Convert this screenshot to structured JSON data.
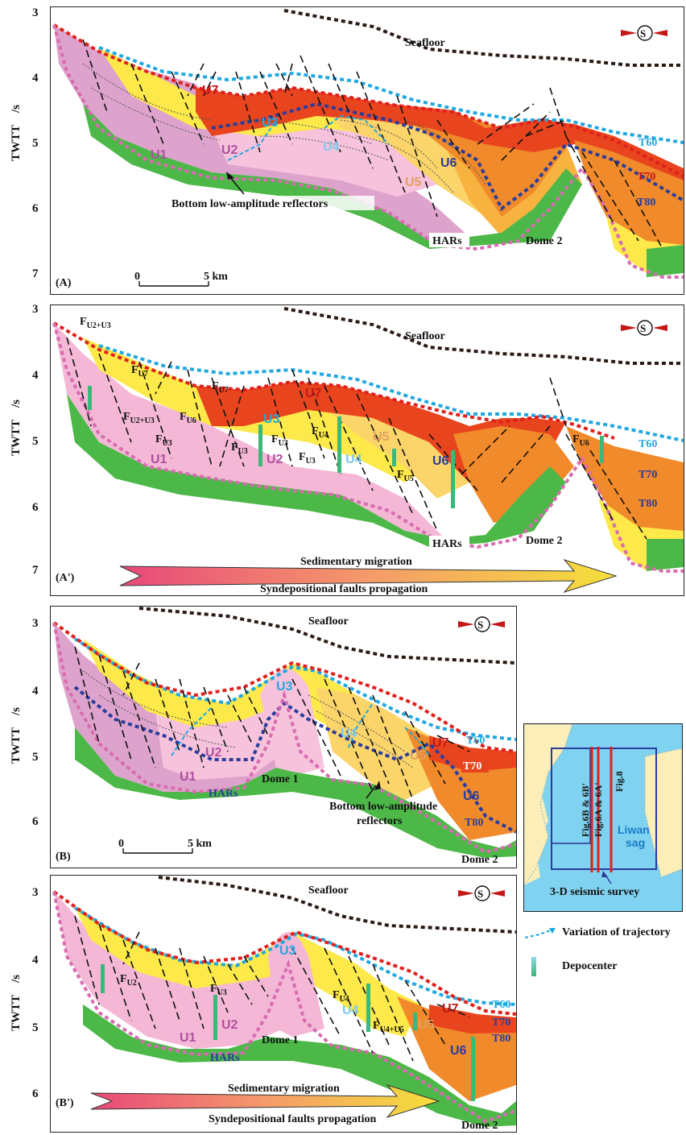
{
  "axis": {
    "label": "TWTT",
    "unit": "/s"
  },
  "panels": [
    {
      "id": "A",
      "tag": "(A)",
      "ticks": [
        "3",
        "4",
        "5",
        "6",
        "7"
      ],
      "scale": {
        "start": "0",
        "end": "5 km"
      }
    },
    {
      "id": "A2",
      "tag": "(A')",
      "ticks": [
        "3",
        "4",
        "5",
        "6",
        "7"
      ]
    },
    {
      "id": "B",
      "tag": "(B)",
      "ticks": [
        "3",
        "4",
        "5",
        "6"
      ],
      "scale": {
        "start": "0",
        "end": "5 km"
      }
    },
    {
      "id": "B2",
      "tag": "(B')",
      "ticks": [
        "3",
        "4",
        "5",
        "6"
      ]
    }
  ],
  "labels": {
    "seafloor": "Seafloor",
    "compass": "S",
    "units": {
      "U1": "U1",
      "U2": "U2",
      "U3": "U3",
      "U4": "U4",
      "U5": "U5",
      "U6": "U6",
      "U7": "U7"
    },
    "horizons": {
      "T60": "T60",
      "T70": "T70",
      "T80": "T80"
    },
    "hars": "HARs",
    "dome1": "Dome 1",
    "dome2": "Dome 2",
    "bottom_low_amp": "Bottom low-amplitude reflectors",
    "bottom_low_amp_l1": "Bottom low-amplitude",
    "bottom_low_amp_l2": "reflectors",
    "sed_migration": "Sedimentary migration",
    "fault_propagation": "Syndepositional faults propagation"
  },
  "faults": {
    "FU2U3": {
      "f": "F",
      "sub": "U2+U3"
    },
    "FU7": {
      "f": "F",
      "sub": "U7"
    },
    "FU6": {
      "f": "F",
      "sub": "U6"
    },
    "FU3": {
      "f": "F",
      "sub": "U3"
    },
    "FU4": {
      "f": "F",
      "sub": "U4"
    },
    "FU5": {
      "f": "F",
      "sub": "U5"
    },
    "FU2": {
      "f": "F",
      "sub": "U2"
    },
    "FU4U5": {
      "f": "F",
      "sub": "U4+U5"
    }
  },
  "inset": {
    "sag_line1": "Liwan",
    "sag_line2": "sag",
    "survey": "3-D seismic survey",
    "lines": [
      "Fig.6B & 6B'",
      "Fig.6A & 6A'",
      "Fig.8"
    ]
  },
  "legend": {
    "trajectory": "Variation of trajectory",
    "depocenter": "Depocenter"
  },
  "colors": {
    "u1": "#f4b8d6",
    "u1dark": "#dea3cc",
    "u2": "#f7c3dc",
    "u3": "#fbd46a",
    "u4": "#fde94a",
    "u5": "#f7b240",
    "u6": "#f08a2a",
    "u7": "#e8451e",
    "green": "#4cb848",
    "t60": "#20a8e0",
    "t70": "#e0201c",
    "t80": "#2a3d9c",
    "base": "#d86cb0",
    "seafloor": "#2a1a14"
  }
}
